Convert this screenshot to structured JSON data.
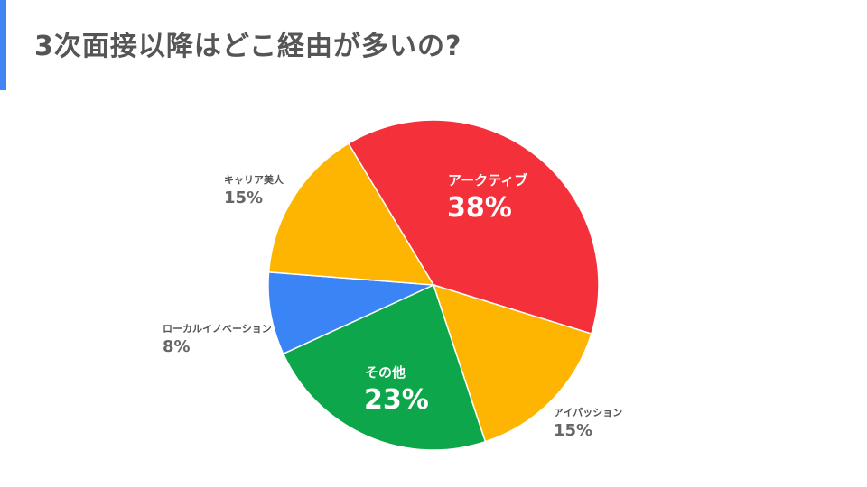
{
  "title": "3次面接以降はどこ経由が多いの?",
  "accent_color": "#4285F4",
  "chart_data": {
    "type": "pie",
    "title": "3次面接以降はどこ経由が多いの?",
    "slices": [
      {
        "label": "アークティブ",
        "value": 38,
        "value_label": "38%",
        "color": "#F4303A",
        "label_position": "inside"
      },
      {
        "label": "アイパッション",
        "value": 15,
        "value_label": "15%",
        "color": "#FDB501",
        "label_position": "outside"
      },
      {
        "label": "その他",
        "value": 23,
        "value_label": "23%",
        "color": "#0EA64B",
        "label_position": "inside"
      },
      {
        "label": "ローカルイノベーション",
        "value": 8,
        "value_label": "8%",
        "color": "#3B84F5",
        "label_position": "outside"
      },
      {
        "label": "キャリア美人",
        "value": 15,
        "value_label": "15%",
        "color": "#FDB501",
        "label_position": "outside"
      }
    ],
    "start_angle_deg": 329,
    "direction": "clockwise",
    "legend": "none"
  }
}
